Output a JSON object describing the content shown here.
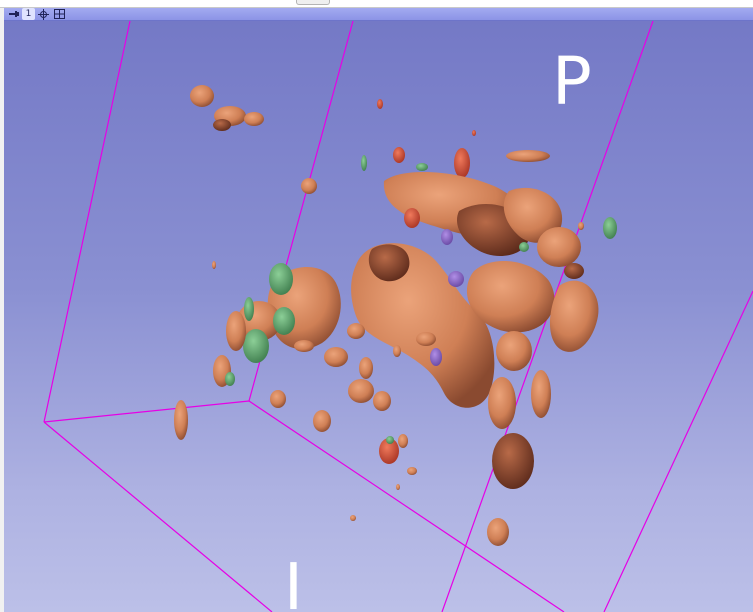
{
  "viewer": {
    "view_number": "1",
    "pin_icon": "pin-icon",
    "center_icon": "center-view-icon",
    "layout_icon": "layout-grid-icon"
  },
  "orientation": {
    "top_right": "P",
    "bottom": "I"
  },
  "colors": {
    "background_top": "#7479c6",
    "background_bottom": "#bcc0e8",
    "bounding_box": "#e600e6",
    "segment_orange": "#d4875e",
    "segment_red": "#d3523a",
    "segment_green": "#5ea36d",
    "segment_purple": "#8f69c9",
    "label_text": "#ffffff"
  }
}
